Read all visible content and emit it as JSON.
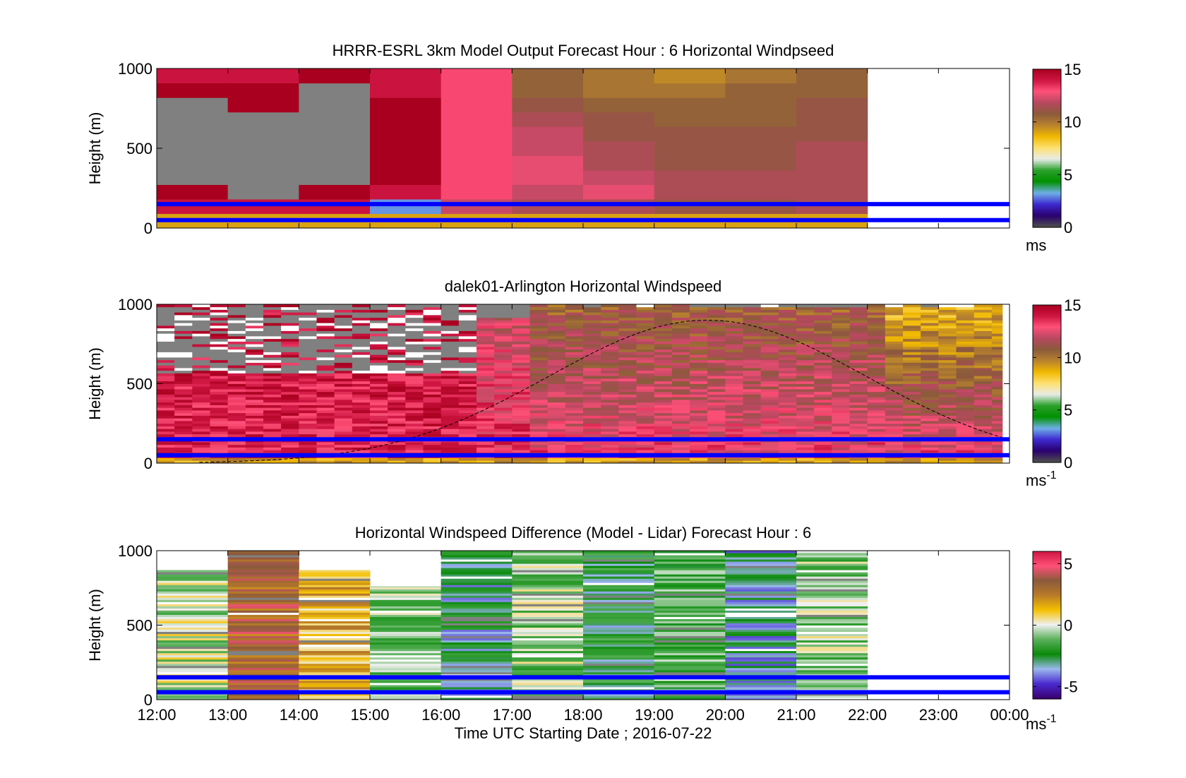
{
  "figure": {
    "xlabel": "Time UTC  Starting Date ; 2016-07-22",
    "x_tick_labels": [
      "12:00",
      "13:00",
      "14:00",
      "15:00",
      "16:00",
      "17:00",
      "18:00",
      "19:00",
      "20:00",
      "21:00",
      "22:00",
      "23:00",
      "00:00"
    ]
  },
  "chart_data": [
    {
      "type": "heatmap",
      "title": "HRRR-ESRL 3km Model Output   Forecast Hour : 6 Horizontal Windpseed",
      "ylabel": "Height (m)",
      "y_ticks": [
        "0",
        "500",
        "1000"
      ],
      "ylim": [
        0,
        1000
      ],
      "xlim_hours": [
        12,
        24
      ],
      "colorbar": {
        "ticks": [
          "0",
          "5",
          "10",
          "15"
        ],
        "range": [
          0,
          15
        ],
        "unit_label": "ms",
        "unit_sup": ""
      },
      "reference_lines_m": [
        50,
        150
      ],
      "data_extent_hours": [
        12,
        22
      ],
      "columns": [
        {
          "hour": 12,
          "speed_by_level": [
            9,
            14,
            15,
            0,
            0,
            0,
            0,
            0,
            0,
            15,
            14
          ]
        },
        {
          "hour": 13,
          "speed_by_level": [
            9,
            14,
            0,
            0,
            0,
            0,
            0,
            0,
            15,
            15,
            14
          ]
        },
        {
          "hour": 14,
          "speed_by_level": [
            9,
            14,
            15,
            0,
            0,
            0,
            0,
            0,
            0,
            0,
            15
          ]
        },
        {
          "hour": 15,
          "speed_by_level": [
            9,
            3,
            14,
            15,
            15,
            15,
            15,
            15,
            15,
            14,
            14
          ]
        },
        {
          "hour": 16,
          "speed_by_level": [
            9,
            12,
            13,
            13,
            13,
            13,
            13,
            13,
            13,
            13,
            13
          ]
        },
        {
          "hour": 17,
          "speed_by_level": [
            9,
            11.5,
            12,
            12.5,
            12.5,
            12,
            12,
            11.5,
            11,
            10.5,
            10.5
          ]
        },
        {
          "hour": 18,
          "speed_by_level": [
            9,
            11.5,
            12.5,
            12,
            11.5,
            11.5,
            11,
            11,
            10.5,
            10,
            10
          ]
        },
        {
          "hour": 19,
          "speed_by_level": [
            9,
            11,
            11.5,
            11.5,
            11,
            11,
            11,
            10.5,
            10.5,
            10,
            9.5
          ]
        },
        {
          "hour": 20,
          "speed_by_level": [
            9,
            11,
            11.5,
            11.5,
            11,
            11,
            11,
            10.5,
            10.5,
            10.5,
            10
          ]
        },
        {
          "hour": 21,
          "speed_by_level": [
            9,
            11.5,
            11.5,
            11.5,
            11.5,
            11.5,
            11,
            11,
            11,
            10.5,
            10.5
          ]
        }
      ]
    },
    {
      "type": "heatmap",
      "title": "dalek01-Arlington  Horizontal Windspeed",
      "ylabel": "Height (m)",
      "y_ticks": [
        "0",
        "500",
        "1000"
      ],
      "ylim": [
        0,
        1000
      ],
      "xlim_hours": [
        12,
        24
      ],
      "colorbar": {
        "ticks": [
          "0",
          "5",
          "10",
          "15"
        ],
        "range": [
          0,
          15
        ],
        "unit_label": "ms",
        "unit_sup": "-1"
      },
      "reference_lines_m": [
        50,
        150
      ],
      "data_extent_hours": [
        12,
        23.9
      ],
      "column_width_hours": 0.25,
      "sun_curve": {
        "peak_hour": 19.75,
        "peak_height_m": 900,
        "width_hours": 6.6,
        "start_hour": 12.6
      },
      "profile_regimes": [
        {
          "from_hour": 12,
          "to_hour": 16.25,
          "low_speed": 13.5,
          "high_speed": 14.5,
          "missing_aloft_fraction": 0.45
        },
        {
          "from_hour": 16.25,
          "to_hour": 17,
          "low_speed": 13.5,
          "high_speed": 12,
          "missing_aloft_fraction": 0.1
        },
        {
          "from_hour": 17,
          "to_hour": 22,
          "low_speed": 13,
          "high_speed": 10.5,
          "missing_aloft_fraction": 0.02
        },
        {
          "from_hour": 22,
          "to_hour": 23.9,
          "low_speed": 13,
          "high_speed": 8.5,
          "missing_aloft_fraction": 0.02
        }
      ]
    },
    {
      "type": "heatmap",
      "title": "Horizontal Windspeed Difference (Model - Lidar) Forecast Hour : 6",
      "ylabel": "Height (m)",
      "y_ticks": [
        "0",
        "500",
        "1000"
      ],
      "ylim": [
        0,
        1000
      ],
      "xlim_hours": [
        12,
        24
      ],
      "colorbar": {
        "ticks": [
          "-5",
          "0",
          "5"
        ],
        "range": [
          -6,
          6
        ],
        "unit_label": "ms",
        "unit_sup": "-1"
      },
      "reference_lines_m": [
        50,
        150
      ],
      "data_extent_hours": [
        12,
        22
      ],
      "columns": [
        {
          "hour": 12,
          "mean_diff": -0.3,
          "top_m": 870
        },
        {
          "hour": 13,
          "mean_diff": 3.3,
          "top_m": 1000
        },
        {
          "hour": 14,
          "mean_diff": 1.4,
          "top_m": 870
        },
        {
          "hour": 15,
          "mean_diff": -0.8,
          "top_m": 760
        },
        {
          "hour": 16,
          "mean_diff": -3.0,
          "top_m": 1000
        },
        {
          "hour": 17,
          "mean_diff": -0.7,
          "top_m": 1000
        },
        {
          "hour": 18,
          "mean_diff": -2.5,
          "top_m": 1000
        },
        {
          "hour": 19,
          "mean_diff": -1.4,
          "top_m": 1000
        },
        {
          "hour": 20,
          "mean_diff": -3.3,
          "top_m": 1000
        },
        {
          "hour": 21,
          "mean_diff": -0.7,
          "top_m": 1000
        }
      ]
    }
  ],
  "colors": {
    "missing": "#808080",
    "reference_line": "#0000ff",
    "speed_colormap": [
      "#4d4d4d",
      "#2a0070",
      "#3d2ad0",
      "#6fb0e8",
      "#009000",
      "#2aa02a",
      "#e8ece8",
      "#fde070",
      "#f0b800",
      "#b8822e",
      "#8b5a3c",
      "#b84860",
      "#ff5078",
      "#cc1440",
      "#a8001e"
    ],
    "diff_colormap": [
      "#3a0070",
      "#4a2ad0",
      "#9ab8ec",
      "#0a8a0a",
      "#5ab05a",
      "#f0f0f0",
      "#f5c000",
      "#b87a28",
      "#8b5a3c",
      "#ff5078",
      "#cc1440"
    ]
  }
}
